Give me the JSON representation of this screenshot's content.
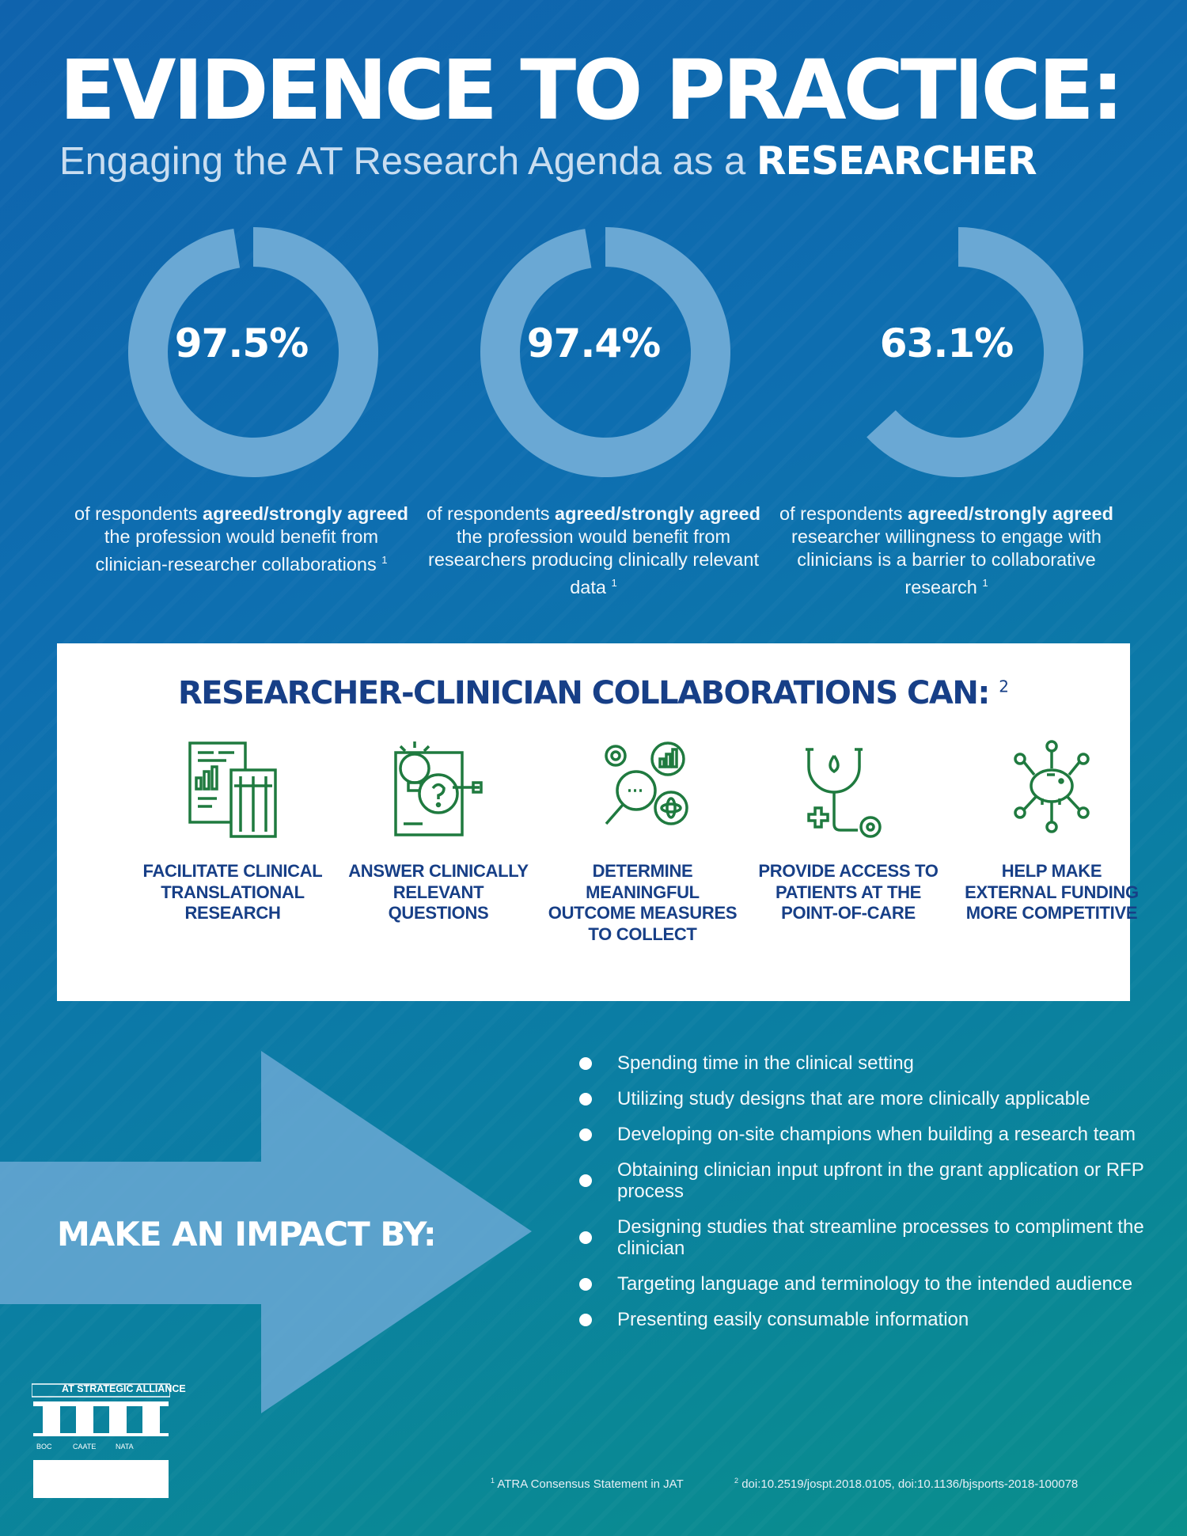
{
  "header": {
    "title": "EVIDENCE TO PRACTICE:",
    "subtitle_prefix": "Engaging the AT Research Agenda as a ",
    "subtitle_emphasis": "RESEARCHER"
  },
  "colors": {
    "background_top": "#0f63ad",
    "background_bottom": "#0a8f8b",
    "donut": "#6aa8d4",
    "panel_text": "#173f87",
    "icon_green": "#1f7a3f",
    "arrow": "#6aa8d4"
  },
  "chart_data": {
    "type": "pie",
    "style": "donut",
    "stats": [
      {
        "value": 97.5,
        "label": "97.5%",
        "desc_pre": "of respondents ",
        "desc_bold": "agreed/strongly agreed",
        "desc_post": " the profession would benefit from clinician-researcher collaborations",
        "ref": "1"
      },
      {
        "value": 97.4,
        "label": "97.4%",
        "desc_pre": "of respondents ",
        "desc_bold": "agreed/strongly agreed",
        "desc_post": " the profession would benefit from researchers producing clinically relevant data",
        "ref": "1"
      },
      {
        "value": 63.1,
        "label": "63.1%",
        "desc_pre": "of respondents ",
        "desc_bold": "agreed/strongly agreed",
        "desc_post": " researcher willingness to engage with clinicians is a barrier to collaborative research",
        "ref": "1"
      }
    ]
  },
  "collaborations": {
    "title": "RESEARCHER-CLINICIAN COLLABORATIONS CAN:",
    "ref": "2",
    "items": [
      {
        "icon": "research-document-icon",
        "label": "FACILITATE CLINICAL TRANSLATIONAL RESEARCH"
      },
      {
        "icon": "lightbulb-question-icon",
        "label": "ANSWER CLINICALLY RELEVANT QUESTIONS"
      },
      {
        "icon": "gears-magnifier-icon",
        "label": "DETERMINE MEANINGFUL OUTCOME MEASURES TO COLLECT"
      },
      {
        "icon": "stethoscope-icon",
        "label": "PROVIDE ACCESS TO PATIENTS AT THE POINT-OF-CARE"
      },
      {
        "icon": "piggy-bank-network-icon",
        "label": "HELP MAKE EXTERNAL FUNDING MORE COMPETITIVE"
      }
    ]
  },
  "impact": {
    "label": "MAKE AN IMPACT BY:",
    "items": [
      "Spending time in the clinical setting",
      "Utilizing study designs that are more clinically applicable",
      "Developing on-site champions when building a research team",
      "Obtaining clinician input upfront in the grant application or RFP process",
      "Designing studies that streamline processes to compliment the clinician",
      "Targeting language and terminology to the intended audience",
      "Presenting easily consumable information"
    ]
  },
  "logo": {
    "mark": "AT",
    "name": "STRATEGIC ALLIANCE",
    "orgs": [
      "BOC",
      "CAATE",
      "NATA"
    ]
  },
  "footnotes": {
    "note1": "ATRA Consensus Statement in JAT",
    "note1_ref": "1",
    "note2": "doi:10.2519/jospt.2018.0105, doi:10.1136/bjsports-2018-100078",
    "note2_ref": "2"
  }
}
